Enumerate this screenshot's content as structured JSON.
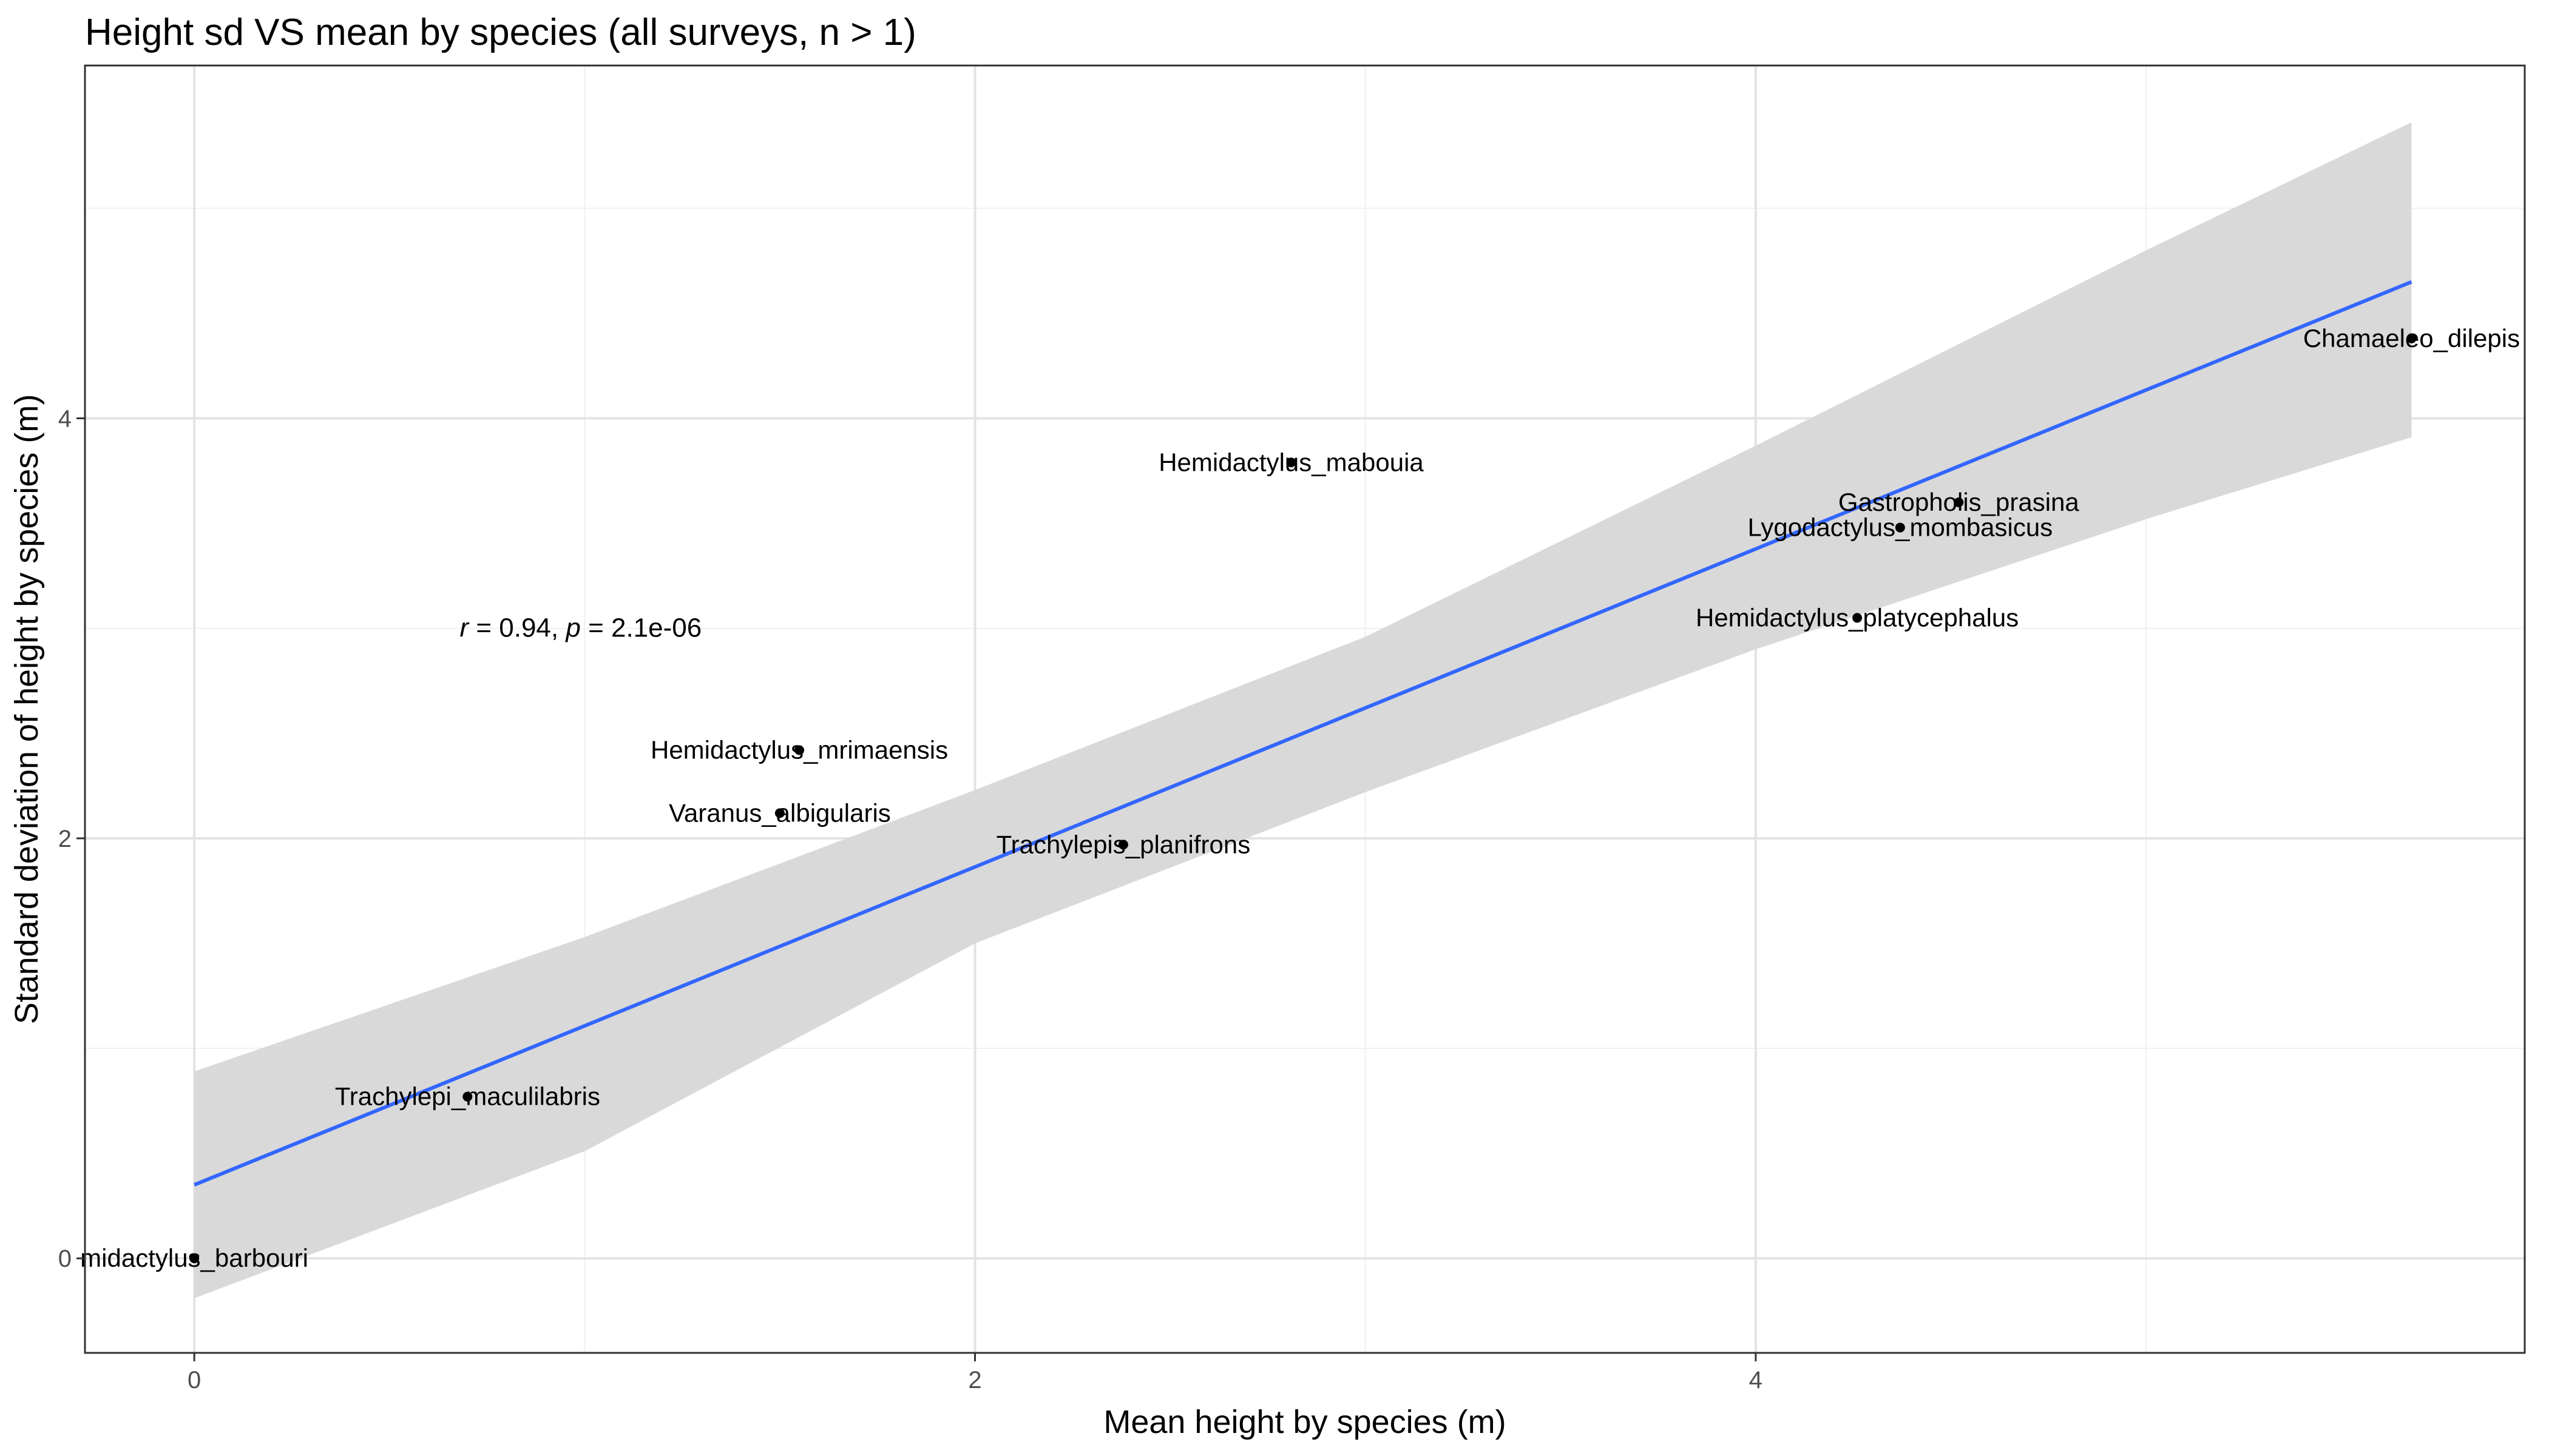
{
  "chart_data": {
    "type": "scatter",
    "title": "Height sd VS mean by species (all surveys, n > 1)",
    "xlabel": "Mean height by species (m)",
    "ylabel": "Standard deviation of height by species (m)",
    "xlim": [
      -0.28,
      5.97
    ],
    "ylim": [
      -0.45,
      5.68
    ],
    "x_ticks": [
      0,
      2,
      4
    ],
    "y_ticks": [
      0,
      2,
      4
    ],
    "x_minor": [
      1,
      3,
      5
    ],
    "y_minor": [
      1,
      3,
      5
    ],
    "grid": true,
    "points": [
      {
        "label": "Chamaeleo_dilepis",
        "x": 5.68,
        "y": 4.38
      },
      {
        "label": "Hemidactylus_mabouia",
        "x": 2.81,
        "y": 3.79
      },
      {
        "label": "Gastropholis_prasina",
        "x": 4.52,
        "y": 3.6
      },
      {
        "label": "Lygodactylus_mombasicus",
        "x": 4.37,
        "y": 3.48
      },
      {
        "label": "Hemidactylus_platycephalus",
        "x": 4.26,
        "y": 3.05
      },
      {
        "label": "Hemidactylus_mrimaensis",
        "x": 1.55,
        "y": 2.42
      },
      {
        "label": "Varanus_albigularis",
        "x": 1.5,
        "y": 2.12
      },
      {
        "label": "Trachylepis_planifrons",
        "x": 2.38,
        "y": 1.97
      },
      {
        "label": "Trachylepi_maculilabris",
        "x": 0.7,
        "y": 0.77
      },
      {
        "label": "midactylus_barbouri",
        "x": 0.0,
        "y": 0.0
      }
    ],
    "fit": {
      "type": "linear",
      "intercept": 0.35,
      "slope": 0.757,
      "x_range": [
        0.0,
        5.68
      ],
      "color": "#3366ff"
    },
    "band": {
      "color": "#d9d9d9",
      "x": [
        0.0,
        1.0,
        2.0,
        3.0,
        4.0,
        5.0,
        5.68
      ],
      "lower": [
        -0.19,
        0.51,
        1.5,
        2.22,
        2.9,
        3.52,
        3.91
      ],
      "upper": [
        0.89,
        1.53,
        2.23,
        2.96,
        3.87,
        4.8,
        5.41
      ]
    },
    "annotation": {
      "r_sym": "r",
      "r_val": " = 0.94, ",
      "p_sym": "p",
      "p_val": " = 2.1e-06",
      "x": 0.68,
      "y": 3.0
    }
  }
}
